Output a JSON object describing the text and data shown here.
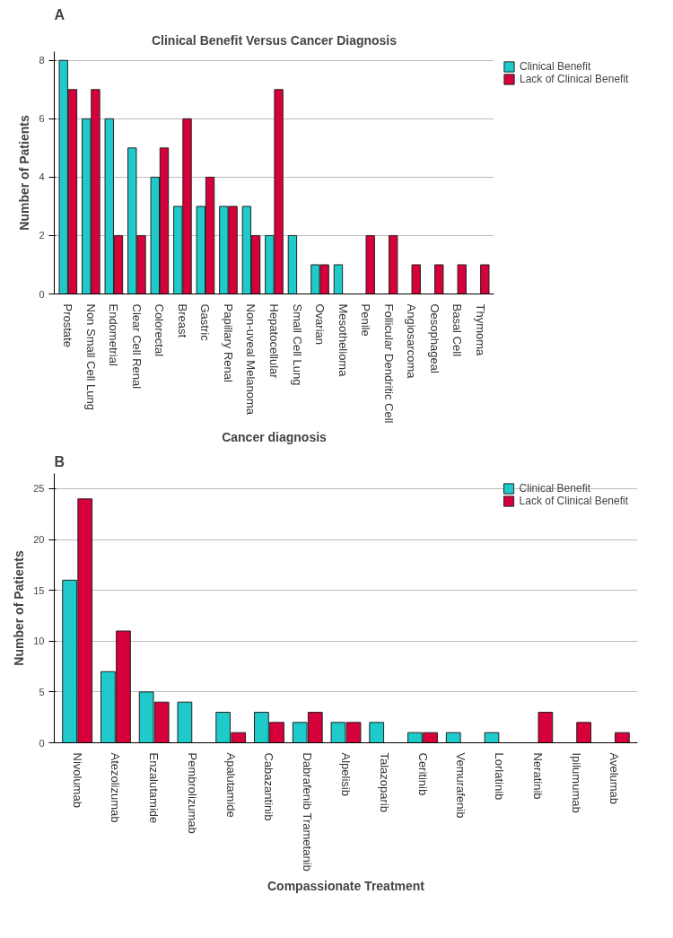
{
  "chart_data": [
    {
      "type": "bar",
      "title": "Clinical Benefit Versus Cancer Diagnosis",
      "xlabel": "Cancer diagnosis",
      "ylabel": "Number of Patients",
      "annotations": [
        "A"
      ],
      "categories": [
        "Prostate",
        "Non Small Cell Lung",
        "Endometrial",
        "Clear Cell Renal",
        "Colorectal",
        "Breast",
        "Gastric",
        "Papillary Renal",
        "Non-uveal Melanoma",
        "Hepatocellular",
        "Small Cell Lung",
        "Ovarian",
        "Mesothelioma",
        "Penile",
        "Follicular Dendritic Cell",
        "Angiosarcoma",
        "Oesophageal",
        "Basal Cell",
        "Thymoma"
      ],
      "series": [
        {
          "name": "Clinical Benefit",
          "color": "#1fcaca",
          "values": [
            8,
            6,
            6,
            5,
            4,
            3,
            3,
            3,
            3,
            2,
            2,
            1,
            1,
            null,
            null,
            null,
            null,
            null,
            null
          ]
        },
        {
          "name": "Lack of Clinical Benefit",
          "color": "#d6003a",
          "values": [
            7,
            7,
            2,
            2,
            5,
            6,
            4,
            3,
            2,
            7,
            null,
            1,
            null,
            2,
            2,
            1,
            1,
            1,
            1
          ]
        }
      ],
      "ylim": [
        0,
        8.3
      ],
      "yticks": [
        0,
        2,
        4,
        6,
        8
      ],
      "grid": "y",
      "legend": "right"
    },
    {
      "type": "bar",
      "xlabel": "Compassionate Treatment",
      "ylabel": "Number of Patients",
      "annotations": [
        "B"
      ],
      "categories": [
        "Nivolumab",
        "Atezolizumab",
        "Enzalutamide",
        "Pembrolizumab",
        "Apalutamide",
        "Cabazantinib",
        "Dabrafenib Trametanib",
        "Alpelisib",
        "Talazoparib",
        "Ceritinib",
        "Vemurafenib",
        "Lorlatinib",
        "Neratinib",
        "Ipilumumab",
        "Avelumab"
      ],
      "series": [
        {
          "name": "Clinical Benefit",
          "color": "#1fcaca",
          "values": [
            16,
            7,
            5,
            4,
            3,
            3,
            2,
            2,
            2,
            1,
            1,
            1,
            null,
            null,
            null
          ]
        },
        {
          "name": "Lack of Clinical Benefit",
          "color": "#d6003a",
          "values": [
            24,
            11,
            4,
            null,
            1,
            2,
            3,
            2,
            null,
            1,
            null,
            null,
            3,
            2,
            1
          ]
        }
      ],
      "ylim": [
        0,
        26.5
      ],
      "yticks": [
        0,
        5,
        10,
        15,
        20,
        25
      ],
      "grid": "y",
      "legend": "top right"
    }
  ]
}
